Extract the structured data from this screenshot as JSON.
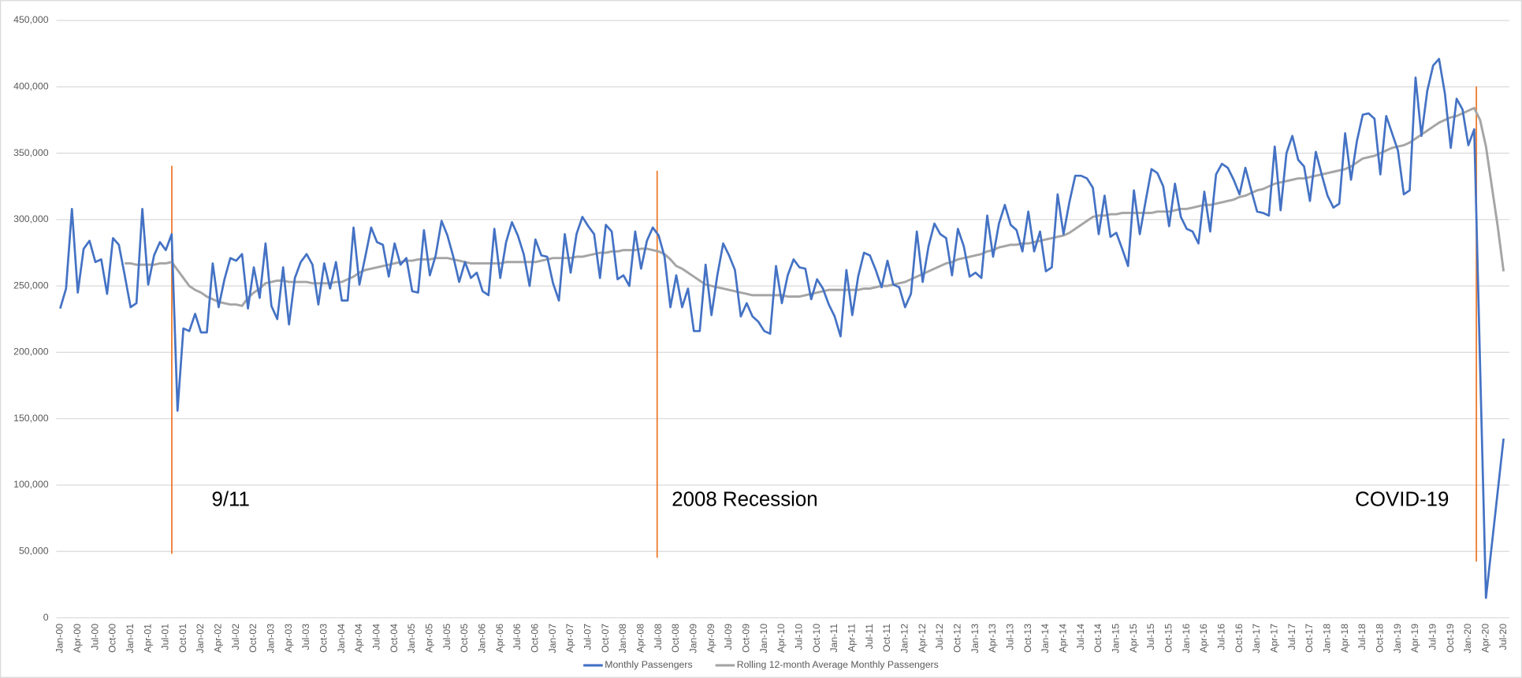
{
  "chart_data": {
    "type": "line",
    "categories": [
      "Jan-00",
      null,
      null,
      "Apr-00",
      null,
      null,
      "Jul-00",
      null,
      null,
      "Oct-00",
      null,
      null,
      "Jan-01",
      null,
      null,
      "Apr-01",
      null,
      null,
      "Jul-01",
      null,
      null,
      "Oct-01",
      null,
      null,
      "Jan-02",
      null,
      null,
      "Apr-02",
      null,
      null,
      "Jul-02",
      null,
      null,
      "Oct-02",
      null,
      null,
      "Jan-03",
      null,
      null,
      "Apr-03",
      null,
      null,
      "Jul-03",
      null,
      null,
      "Oct-03",
      null,
      null,
      "Jan-04",
      null,
      null,
      "Apr-04",
      null,
      null,
      "Jul-04",
      null,
      null,
      "Oct-04",
      null,
      null,
      "Jan-05",
      null,
      null,
      "Apr-05",
      null,
      null,
      "Jul-05",
      null,
      null,
      "Oct-05",
      null,
      null,
      "Jan-06",
      null,
      null,
      "Apr-06",
      null,
      null,
      "Jul-06",
      null,
      null,
      "Oct-06",
      null,
      null,
      "Jan-07",
      null,
      null,
      "Apr-07",
      null,
      null,
      "Jul-07",
      null,
      null,
      "Oct-07",
      null,
      null,
      "Jan-08",
      null,
      null,
      "Apr-08",
      null,
      null,
      "Jul-08",
      null,
      null,
      "Oct-08",
      null,
      null,
      "Jan-09",
      null,
      null,
      "Apr-09",
      null,
      null,
      "Jul-09",
      null,
      null,
      "Oct-09",
      null,
      null,
      "Jan-10",
      null,
      null,
      "Apr-10",
      null,
      null,
      "Jul-10",
      null,
      null,
      "Oct-10",
      null,
      null,
      "Jan-11",
      null,
      null,
      "Apr-11",
      null,
      null,
      "Jul-11",
      null,
      null,
      "Oct-11",
      null,
      null,
      "Jan-12",
      null,
      null,
      "Apr-12",
      null,
      null,
      "Jul-12",
      null,
      null,
      "Oct-12",
      null,
      null,
      "Jan-13",
      null,
      null,
      "Apr-13",
      null,
      null,
      "Jul-13",
      null,
      null,
      "Oct-13",
      null,
      null,
      "Jan-14",
      null,
      null,
      "Apr-14",
      null,
      null,
      "Jul-14",
      null,
      null,
      "Oct-14",
      null,
      null,
      "Jan-15",
      null,
      null,
      "Apr-15",
      null,
      null,
      "Jul-15",
      null,
      null,
      "Oct-15",
      null,
      null,
      "Jan-16",
      null,
      null,
      "Apr-16",
      null,
      null,
      "Jul-16",
      null,
      null,
      "Oct-16",
      null,
      null,
      "Jan-17",
      null,
      null,
      "Apr-17",
      null,
      null,
      "Jul-17",
      null,
      null,
      "Oct-17",
      null,
      null,
      "Jan-18",
      null,
      null,
      "Apr-18",
      null,
      null,
      "Jul-18",
      null,
      null,
      "Oct-18",
      null,
      null,
      "Jan-19",
      null,
      null,
      "Apr-19",
      null,
      null,
      "Jul-19",
      null,
      null,
      "Oct-19",
      null,
      null,
      "Jan-20",
      null,
      null,
      "Apr-20",
      null,
      null,
      "Jul-20"
    ],
    "series": [
      {
        "name": "Monthly Passengers",
        "color": "#4472c4",
        "values": [
          233000,
          248000,
          308000,
          245000,
          278000,
          284000,
          268000,
          270000,
          244000,
          286000,
          281000,
          258000,
          234000,
          237000,
          308000,
          251000,
          273000,
          283000,
          277000,
          289000,
          156000,
          218000,
          216000,
          229000,
          215000,
          215000,
          267000,
          234000,
          255000,
          271000,
          269000,
          274000,
          233000,
          264000,
          241000,
          282000,
          235000,
          225000,
          264000,
          221000,
          256000,
          268000,
          274000,
          266000,
          236000,
          267000,
          248000,
          268000,
          239000,
          239000,
          294000,
          251000,
          272000,
          294000,
          283000,
          281000,
          257000,
          282000,
          266000,
          271000,
          246000,
          245000,
          292000,
          258000,
          273000,
          299000,
          288000,
          272000,
          253000,
          268000,
          256000,
          260000,
          246000,
          243000,
          293000,
          256000,
          283000,
          298000,
          288000,
          274000,
          250000,
          285000,
          273000,
          272000,
          252000,
          239000,
          289000,
          260000,
          289000,
          302000,
          295000,
          289000,
          256000,
          296000,
          291000,
          255000,
          258000,
          250000,
          291000,
          263000,
          284000,
          294000,
          288000,
          272000,
          234000,
          258000,
          234000,
          248000,
          216000,
          216000,
          266000,
          228000,
          258000,
          282000,
          273000,
          262000,
          227000,
          237000,
          227000,
          223000,
          216000,
          214000,
          265000,
          237000,
          258000,
          270000,
          264000,
          263000,
          240000,
          255000,
          248000,
          236000,
          227000,
          212000,
          262000,
          228000,
          257000,
          275000,
          273000,
          262000,
          249000,
          269000,
          251000,
          249000,
          234000,
          244000,
          291000,
          253000,
          280000,
          297000,
          289000,
          286000,
          258000,
          293000,
          280000,
          257000,
          260000,
          256000,
          303000,
          272000,
          297000,
          311000,
          296000,
          292000,
          276000,
          306000,
          276000,
          291000,
          261000,
          264000,
          319000,
          289000,
          313000,
          333000,
          333000,
          331000,
          324000,
          289000,
          318000,
          287000,
          290000,
          278000,
          265000,
          322000,
          289000,
          314000,
          338000,
          335000,
          325000,
          295000,
          327000,
          302000,
          293000,
          291000,
          282000,
          321000,
          291000,
          334000,
          342000,
          339000,
          330000,
          319000,
          339000,
          322000,
          306000,
          305000,
          303000,
          355000,
          307000,
          350000,
          363000,
          345000,
          340000,
          314000,
          351000,
          334000,
          318000,
          309000,
          312000,
          365000,
          330000,
          359000,
          379000,
          380000,
          376000,
          334000,
          378000,
          365000,
          352000,
          319000,
          322000,
          407000,
          363000,
          397000,
          416000,
          421000,
          395000,
          354000,
          391000,
          383000,
          356000,
          368000,
          190000,
          15000,
          55000,
          95000,
          135000
        ]
      },
      {
        "name": "Rolling 12-month Average Monthly Passengers",
        "color": "#a5a5a5",
        "values": [
          null,
          null,
          null,
          null,
          null,
          null,
          null,
          null,
          null,
          null,
          null,
          267000,
          267000,
          266000,
          266000,
          266000,
          266000,
          267000,
          267000,
          268000,
          262000,
          256000,
          250000,
          247000,
          245000,
          242000,
          240000,
          238000,
          237000,
          236000,
          236000,
          235000,
          241000,
          245000,
          248000,
          252000,
          253000,
          254000,
          254000,
          253000,
          253000,
          253000,
          253000,
          252000,
          252000,
          252000,
          252000,
          253000,
          253000,
          255000,
          257000,
          260000,
          262000,
          263000,
          264000,
          265000,
          266000,
          267000,
          268000,
          269000,
          269000,
          270000,
          270000,
          270000,
          271000,
          271000,
          271000,
          270000,
          269000,
          268000,
          267000,
          267000,
          267000,
          267000,
          267000,
          267000,
          268000,
          268000,
          268000,
          268000,
          268000,
          268000,
          269000,
          270000,
          271000,
          271000,
          271000,
          271000,
          272000,
          272000,
          273000,
          274000,
          275000,
          275000,
          276000,
          276000,
          277000,
          277000,
          277000,
          278000,
          278000,
          277000,
          276000,
          274000,
          270000,
          265000,
          263000,
          260000,
          257000,
          254000,
          251000,
          250000,
          249000,
          248000,
          247000,
          246000,
          245000,
          244000,
          243000,
          243000,
          243000,
          243000,
          243000,
          243000,
          242000,
          242000,
          242000,
          243000,
          244000,
          245000,
          246000,
          247000,
          247000,
          247000,
          247000,
          247000,
          247000,
          248000,
          248000,
          249000,
          250000,
          250000,
          251000,
          252000,
          253000,
          255000,
          257000,
          259000,
          261000,
          263000,
          265000,
          267000,
          268000,
          270000,
          271000,
          272000,
          273000,
          274000,
          276000,
          277000,
          279000,
          280000,
          281000,
          281000,
          282000,
          282000,
          283000,
          284000,
          285000,
          286000,
          287000,
          288000,
          290000,
          293000,
          296000,
          299000,
          302000,
          303000,
          303000,
          304000,
          304000,
          305000,
          305000,
          305000,
          305000,
          305000,
          305000,
          306000,
          306000,
          306000,
          307000,
          308000,
          308000,
          309000,
          310000,
          311000,
          311000,
          312000,
          313000,
          314000,
          315000,
          317000,
          318000,
          320000,
          322000,
          323000,
          325000,
          327000,
          328000,
          329000,
          330000,
          331000,
          331000,
          332000,
          333000,
          334000,
          335000,
          336000,
          337000,
          338000,
          340000,
          343000,
          346000,
          347000,
          348000,
          350000,
          352000,
          354000,
          355000,
          356000,
          358000,
          361000,
          364000,
          367000,
          370000,
          373000,
          375000,
          377000,
          378000,
          380000,
          382000,
          384000,
          375000,
          355000,
          325000,
          295000,
          261000
        ]
      }
    ],
    "ylim": [
      0,
      450000
    ],
    "yticks": [
      0,
      {
        "value": 50000,
        "label": "50,000"
      },
      {
        "value": 100000,
        "label": "100,000"
      },
      {
        "value": 150000,
        "label": "150,000"
      },
      {
        "value": 200000,
        "label": "200,000"
      },
      {
        "value": 250000,
        "label": "250,000"
      },
      {
        "value": 300000,
        "label": "300,000"
      },
      {
        "value": 350000,
        "label": "350,000"
      },
      {
        "value": 400000,
        "label": "400,000"
      },
      {
        "value": 450000,
        "label": "450,000"
      }
    ],
    "grid": true,
    "legend": "bottom",
    "annotations": [
      "9/11",
      "2008 Recession",
      "COVID-19"
    ],
    "annotation_color": "#ed7d31"
  }
}
